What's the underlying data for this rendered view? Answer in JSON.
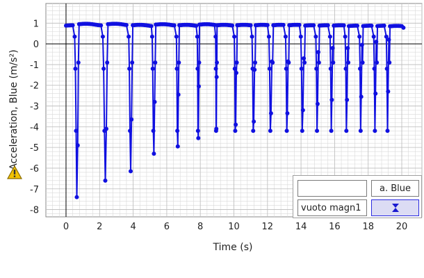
{
  "chart_data": {
    "type": "line",
    "title": "",
    "xlabel": "Time (s)",
    "ylabel": "Acceleration, Blue (m/s²)",
    "xlim": [
      -1.2,
      21.2
    ],
    "ylim": [
      -8.35,
      1.95
    ],
    "x_ticks": [
      0,
      2,
      4,
      6,
      8,
      10,
      12,
      14,
      16,
      18,
      20
    ],
    "y_ticks": [
      1,
      0,
      -1,
      -2,
      -3,
      -4,
      -5,
      -6,
      -7,
      -8
    ],
    "grid": true,
    "series_color": "#1010e0",
    "grid_color": "#d9d9d9",
    "pattern": {
      "baseline": 0.9,
      "cycles": [
        {
          "x0": 0.0,
          "y0": 0.88,
          "dip_start": 0.48,
          "min": -7.4
        },
        {
          "x0": 0.78,
          "y0": 0.95,
          "dip_start": 2.15,
          "min": -6.6
        },
        {
          "x0": 2.5,
          "y0": 0.95,
          "dip_start": 3.7,
          "min": -6.15
        },
        {
          "x0": 3.98,
          "y0": 0.9,
          "dip_start": 5.1,
          "min": -5.3
        },
        {
          "x0": 5.35,
          "y0": 0.93,
          "dip_start": 6.55,
          "min": -4.95
        },
        {
          "x0": 6.75,
          "y0": 0.9,
          "dip_start": 7.8,
          "min": -4.55
        },
        {
          "x0": 7.95,
          "y0": 0.93,
          "dip_start": 8.9,
          "min": -4.1
        },
        {
          "x0": 9.0,
          "y0": 0.9,
          "dip_start": 10.0,
          "min": -3.9
        },
        {
          "x0": 10.2,
          "y0": 0.9,
          "dip_start": 11.05,
          "min": -3.75
        },
        {
          "x0": 11.3,
          "y0": 0.9,
          "dip_start": 12.05,
          "min": -3.35
        },
        {
          "x0": 12.35,
          "y0": 0.9,
          "dip_start": 13.05,
          "min": -3.35
        },
        {
          "x0": 13.3,
          "y0": 0.9,
          "dip_start": 13.95,
          "min": -3.2
        },
        {
          "x0": 14.25,
          "y0": 0.88,
          "dip_start": 14.85,
          "min": -2.9
        },
        {
          "x0": 15.1,
          "y0": 0.88,
          "dip_start": 15.7,
          "min": -2.7
        },
        {
          "x0": 15.95,
          "y0": 0.88,
          "dip_start": 16.6,
          "min": -2.7
        },
        {
          "x0": 16.85,
          "y0": 0.86,
          "dip_start": 17.45,
          "min": -2.55
        },
        {
          "x0": 17.7,
          "y0": 0.86,
          "dip_start": 18.3,
          "min": -2.4
        },
        {
          "x0": 18.55,
          "y0": 0.86,
          "dip_start": 19.05,
          "min": -2.3
        },
        {
          "x0": 19.3,
          "y0": 0.85,
          "dip_start": 20.1,
          "min": 0.78
        }
      ]
    },
    "legend": {
      "placement": "bottom-right",
      "series_label": "a. Blue",
      "name_label": "vuoto magn1"
    }
  }
}
